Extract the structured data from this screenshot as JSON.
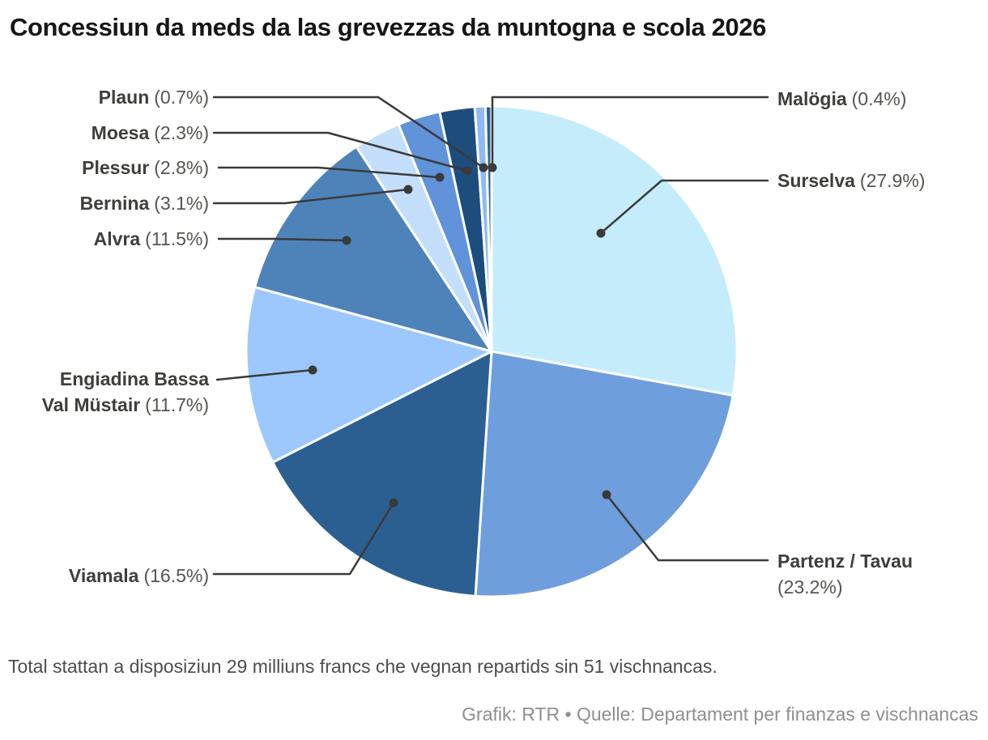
{
  "title": "Concessiun da meds da las grevezzas da muntogna e scola 2026",
  "chart_data": {
    "type": "pie",
    "title": "Concessiun da meds da las grevezzas da muntogna e scola 2026",
    "unit": "%",
    "start_angle_deg": -90,
    "direction": "clockwise",
    "legend_position": "callout-labels",
    "slices": [
      {
        "label": "Surselva",
        "value": 27.9,
        "pct_display": "(27.9%)",
        "color": "#c5ecfb"
      },
      {
        "label": "Partenz / Tavau",
        "value": 23.2,
        "pct_display": "(23.2%)",
        "color": "#6f9edd"
      },
      {
        "label": "Viamala",
        "value": 16.5,
        "pct_display": "(16.5%)",
        "color": "#2b5f91"
      },
      {
        "label": "Engiadina Bassa Val Müstair",
        "label_line1": "Engiadina Bassa",
        "label_line2": "Val Müstair",
        "value": 11.7,
        "pct_display": "(11.7%)",
        "color": "#9dc8fd"
      },
      {
        "label": "Alvra",
        "value": 11.5,
        "pct_display": "(11.5%)",
        "color": "#4e83ba"
      },
      {
        "label": "Bernina",
        "value": 3.1,
        "pct_display": "(3.1%)",
        "color": "#c4dffb"
      },
      {
        "label": "Plessur",
        "value": 2.8,
        "pct_display": "(2.8%)",
        "color": "#6093d9"
      },
      {
        "label": "Moesa",
        "value": 2.3,
        "pct_display": "(2.3%)",
        "color": "#1c4d7d"
      },
      {
        "label": "Plaun",
        "value": 0.7,
        "pct_display": "(0.7%)",
        "color": "#8fbbf3"
      },
      {
        "label": "Malögia",
        "value": 0.4,
        "pct_display": "(0.4%)",
        "color": "#2d618f"
      }
    ],
    "note": "Total stattan a disposiziun 29 milliuns francs che vegnan repartids sin 51 vischnancas.",
    "credit": "Grafik: RTR • Quelle: Departament per finanzas e vischnancas",
    "connector_color": "#3a3a3a",
    "slice_gap_color": "#ffffff"
  }
}
